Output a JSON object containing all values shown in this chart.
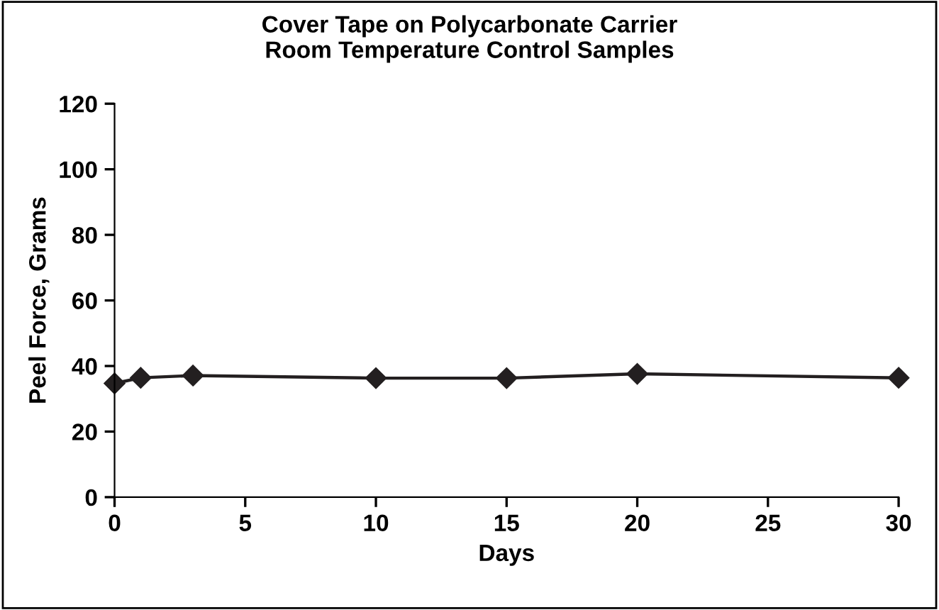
{
  "chart_data": {
    "type": "line",
    "title": "Cover Tape on Polycarbonate Carrier\nRoom Temperature Control Samples",
    "xlabel": "Days",
    "ylabel": "Peel Force, Grams",
    "x": [
      0,
      1,
      3,
      10,
      15,
      20,
      30
    ],
    "series": [
      {
        "color": "#231f20",
        "values": [
          34.7,
          36.4,
          37.1,
          36.3,
          36.3,
          37.6,
          36.4
        ]
      }
    ],
    "xlim": [
      0,
      30
    ],
    "xticks": [
      0,
      5,
      10,
      15,
      20,
      25,
      30
    ],
    "ylim": [
      0,
      120
    ],
    "yticks": [
      0,
      20,
      40,
      60,
      80,
      100,
      120
    ],
    "grid": false,
    "legend": false,
    "marker": "diamond",
    "line_style": "solid"
  }
}
